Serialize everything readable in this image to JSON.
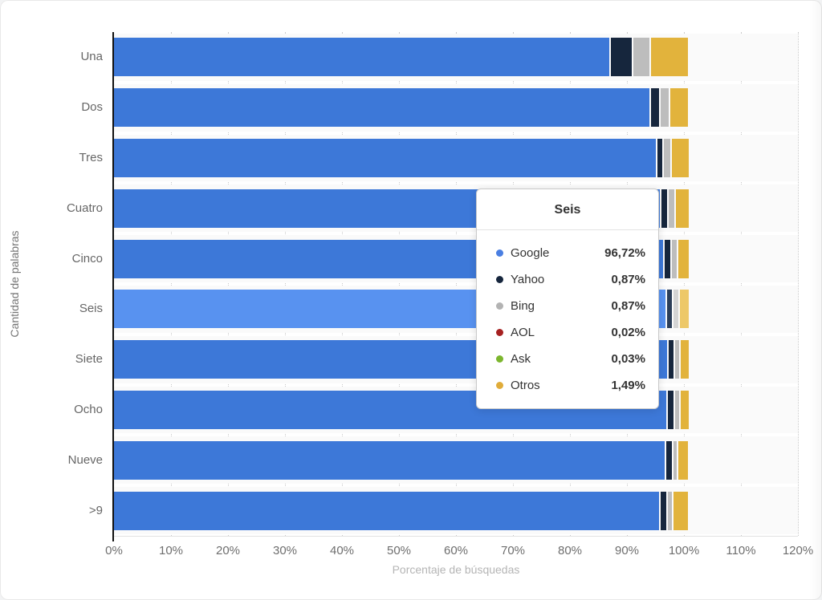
{
  "chart_data": {
    "type": "bar",
    "stacked": true,
    "orientation": "horizontal",
    "title": "",
    "xlabel": "Porcentaje de búsquedas",
    "ylabel": "Cantidad de palabras",
    "xlim": [
      0,
      120
    ],
    "x_ticks": [
      "0%",
      "10%",
      "20%",
      "30%",
      "40%",
      "50%",
      "60%",
      "70%",
      "80%",
      "90%",
      "100%",
      "110%",
      "120%"
    ],
    "grid": "vertical-dotted",
    "legend_position": "none",
    "highlighted_category": "Seis",
    "categories": [
      "Una",
      "Dos",
      "Tres",
      "Cuatro",
      "Cinco",
      "Seis",
      "Siete",
      "Ocho",
      "Nueve",
      ">9"
    ],
    "series": [
      {
        "name": "Google",
        "color": "#3d78d8",
        "highlight_color": "#5892f0",
        "values": [
          86.9,
          94.0,
          95.1,
          95.8,
          96.4,
          96.72,
          97.0,
          96.9,
          96.6,
          95.6
        ]
      },
      {
        "name": "Yahoo",
        "color": "#16263d",
        "highlight_color": "#2c3e58",
        "values": [
          3.6,
          1.35,
          0.85,
          1.0,
          0.9,
          0.87,
          0.95,
          1.0,
          0.95,
          1.0
        ]
      },
      {
        "name": "Bing",
        "color": "#bdbdbd",
        "highlight_color": "#d4d4d4",
        "values": [
          2.9,
          1.35,
          1.1,
          0.95,
          0.85,
          0.87,
          0.65,
          0.65,
          0.65,
          0.7
        ]
      },
      {
        "name": "AOL",
        "color": "#a62121",
        "highlight_color": "#b84a4a",
        "values": [
          0.05,
          0.03,
          0.03,
          0.02,
          0.02,
          0.02,
          0.02,
          0.02,
          0.03,
          0.05
        ]
      },
      {
        "name": "Ask",
        "color": "#7cb62e",
        "highlight_color": "#96c75a",
        "values": [
          0.05,
          0.04,
          0.03,
          0.03,
          0.03,
          0.03,
          0.03,
          0.03,
          0.04,
          0.05
        ]
      },
      {
        "name": "Otros",
        "color": "#e2b33c",
        "highlight_color": "#edc868",
        "values": [
          6.5,
          3.23,
          2.89,
          2.2,
          1.8,
          1.49,
          1.35,
          1.4,
          1.73,
          2.6
        ]
      }
    ]
  },
  "axes": {
    "x_title": "Porcentaje de búsquedas",
    "y_title": "Cantidad de palabras"
  },
  "tooltip": {
    "title": "Seis",
    "rows": [
      {
        "name": "Google",
        "value": "96,72%",
        "color": "#4a7fe2"
      },
      {
        "name": "Yahoo",
        "value": "0,87%",
        "color": "#16263d"
      },
      {
        "name": "Bing",
        "value": "0,87%",
        "color": "#b3b3b3"
      },
      {
        "name": "AOL",
        "value": "0,02%",
        "color": "#a62121"
      },
      {
        "name": "Ask",
        "value": "0,03%",
        "color": "#7cb62e"
      },
      {
        "name": "Otros",
        "value": "1,49%",
        "color": "#e0ac3a"
      }
    ]
  }
}
